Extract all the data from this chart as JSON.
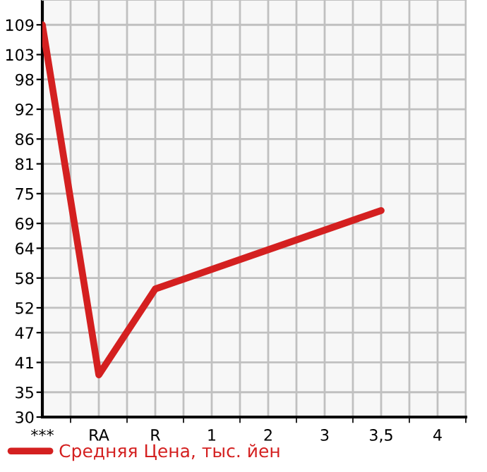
{
  "chart_data": {
    "type": "line",
    "categories": [
      "***",
      "RA",
      "R",
      "1",
      "2",
      "3",
      "3,5",
      "4"
    ],
    "series": [
      {
        "name": "Средняя Цена, тыс. йен",
        "color": "#d42020",
        "values": [
          109,
          38.5,
          55.8,
          null,
          null,
          null,
          71.6,
          null
        ]
      }
    ],
    "ylim": [
      30,
      114
    ],
    "yticks": [
      30,
      35,
      41,
      47,
      52,
      58,
      64,
      69,
      75,
      81,
      86,
      92,
      98,
      103,
      109
    ],
    "grid": true,
    "legend": "bottom left",
    "marker": "none",
    "line_style": "solid"
  }
}
